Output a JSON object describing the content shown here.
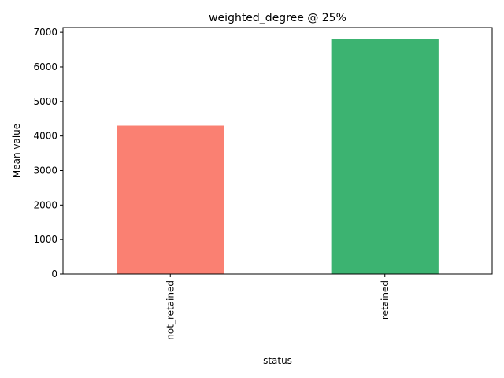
{
  "chart_data": {
    "type": "bar",
    "title": "weighted_degree @ 25%",
    "xlabel": "status",
    "ylabel": "Mean value",
    "categories": [
      "not_retained",
      "retained"
    ],
    "values": [
      4300,
      6800
    ],
    "colors": [
      "#fa8072",
      "#3cb371"
    ],
    "ylim": [
      0,
      7140
    ],
    "yticks": [
      0,
      1000,
      2000,
      3000,
      4000,
      5000,
      6000,
      7000
    ],
    "grid": false,
    "legend": "none"
  }
}
